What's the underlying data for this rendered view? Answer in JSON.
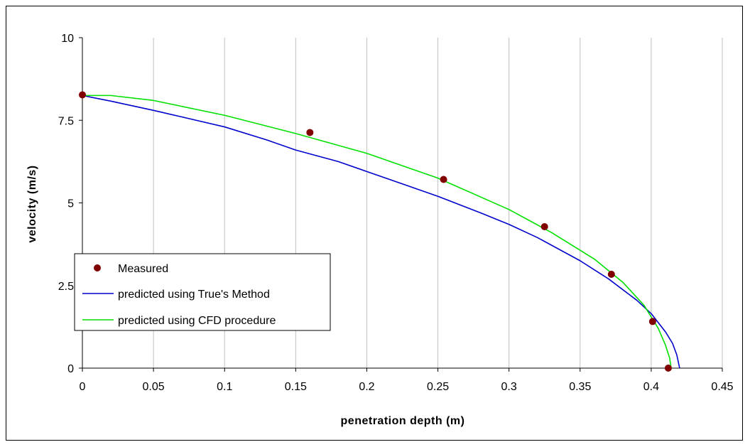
{
  "chart_data": {
    "type": "line",
    "title": "",
    "xlabel": "penetration depth (m)",
    "ylabel": "velocity (m/s)",
    "xlim": [
      0,
      0.45
    ],
    "ylim": [
      0,
      10
    ],
    "xticks": [
      0,
      0.05,
      0.1,
      0.15,
      0.2,
      0.25,
      0.3,
      0.35,
      0.4,
      0.45
    ],
    "xtick_labels": [
      "0",
      "0.05",
      "0.1",
      "0.15",
      "0.2",
      "0.25",
      "0.3",
      "0.35",
      "0.4",
      "0.45"
    ],
    "yticks": [
      0,
      2.5,
      5,
      7.5,
      10
    ],
    "ytick_labels": [
      "0",
      "2.5",
      "5",
      "7.5",
      "10"
    ],
    "grid": "vertical",
    "legend_position": "left",
    "series": [
      {
        "name": "Measured",
        "kind": "scatter",
        "color": "#800000",
        "x": [
          0,
          0.16,
          0.254,
          0.325,
          0.372,
          0.401,
          0.412
        ],
        "y": [
          8.27,
          7.13,
          5.71,
          4.28,
          2.84,
          1.41,
          0
        ]
      },
      {
        "name": "predicted using True's Method",
        "kind": "line",
        "color": "#0000cc",
        "x": [
          0,
          0.02,
          0.05,
          0.08,
          0.1,
          0.13,
          0.15,
          0.18,
          0.2,
          0.23,
          0.25,
          0.28,
          0.3,
          0.32,
          0.35,
          0.37,
          0.39,
          0.4,
          0.41,
          0.415,
          0.418,
          0.42
        ],
        "y": [
          8.25,
          8.08,
          7.8,
          7.5,
          7.3,
          6.9,
          6.6,
          6.25,
          5.95,
          5.5,
          5.2,
          4.7,
          4.35,
          3.95,
          3.25,
          2.7,
          2.05,
          1.65,
          1.1,
          0.75,
          0.4,
          0
        ]
      },
      {
        "name": "predicted using CFD procedure",
        "kind": "line",
        "color": "#00e000",
        "x": [
          0,
          0.02,
          0.05,
          0.1,
          0.15,
          0.2,
          0.25,
          0.3,
          0.33,
          0.36,
          0.38,
          0.395,
          0.405,
          0.41,
          0.413,
          0.414
        ],
        "y": [
          8.25,
          8.25,
          8.1,
          7.65,
          7.1,
          6.5,
          5.75,
          4.8,
          4.1,
          3.3,
          2.6,
          1.9,
          1.2,
          0.7,
          0.3,
          0
        ]
      }
    ]
  }
}
